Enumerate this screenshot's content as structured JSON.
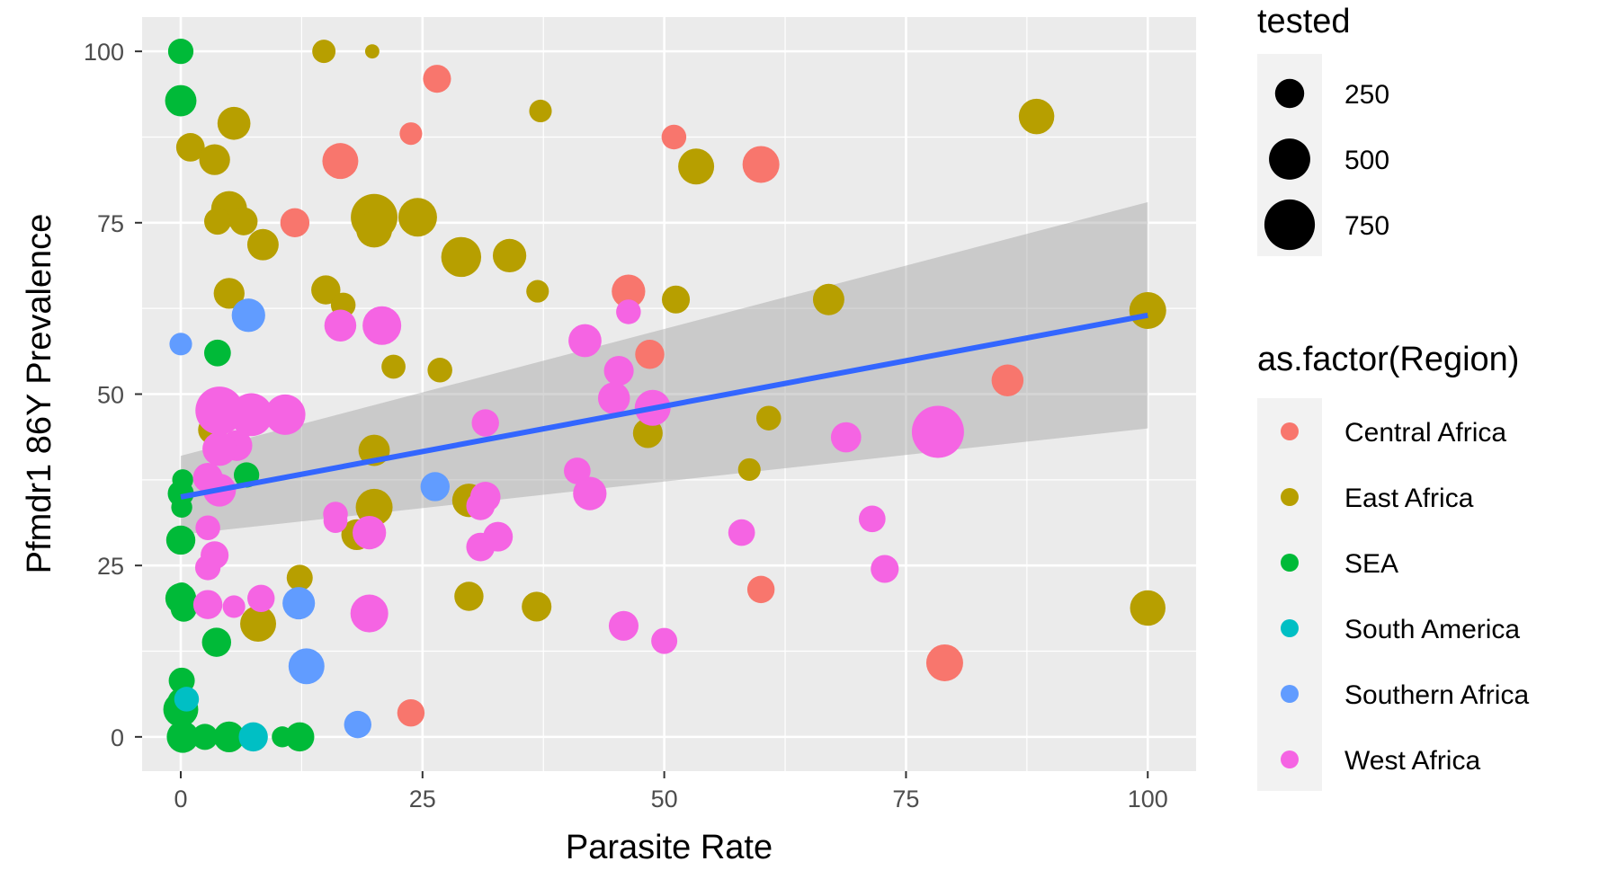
{
  "chart_data": {
    "type": "scatter",
    "title": "",
    "xlabel": "Parasite Rate",
    "ylabel": "Pfmdr1 86Y Prevalence",
    "xlim": [
      -4,
      105
    ],
    "ylim": [
      -5,
      105
    ],
    "x_ticks": [
      "0",
      "25",
      "50",
      "75",
      "100"
    ],
    "y_ticks": [
      "0",
      "25",
      "50",
      "75",
      "100"
    ],
    "grid": true,
    "panel_color": "#ebebeb",
    "size_legend": {
      "title": "tested",
      "entries": [
        {
          "label": "250",
          "value": 250
        },
        {
          "label": "500",
          "value": 500
        },
        {
          "label": "750",
          "value": 750
        }
      ]
    },
    "color_legend": {
      "title": "as.factor(Region)",
      "entries": [
        {
          "label": "Central Africa",
          "color": "#F8766D"
        },
        {
          "label": "East Africa",
          "color": "#B79F00"
        },
        {
          "label": "SEA",
          "color": "#00BA38"
        },
        {
          "label": "South America",
          "color": "#00BFC4"
        },
        {
          "label": "Southern Africa",
          "color": "#619CFF"
        },
        {
          "label": "West Africa",
          "color": "#F564E3"
        }
      ]
    },
    "regression": {
      "method": "lm",
      "color": "#3366FF",
      "x": [
        0,
        100
      ],
      "y": [
        35,
        61.5
      ],
      "ci_lower": [
        29.5,
        45
      ],
      "ci_upper": [
        41,
        78
      ]
    },
    "series": [
      {
        "name": "Central Africa",
        "color": "#F8766D",
        "points": [
          {
            "x": 26.5,
            "y": 96,
            "tested": 230
          },
          {
            "x": 23.8,
            "y": 88,
            "tested": 150
          },
          {
            "x": 16.5,
            "y": 84,
            "tested": 380
          },
          {
            "x": 51,
            "y": 87.5,
            "tested": 180
          },
          {
            "x": 60,
            "y": 83.5,
            "tested": 400
          },
          {
            "x": 11.8,
            "y": 75,
            "tested": 250
          },
          {
            "x": 46.3,
            "y": 65,
            "tested": 330
          },
          {
            "x": 48.5,
            "y": 55.8,
            "tested": 250
          },
          {
            "x": 85.5,
            "y": 52,
            "tested": 300
          },
          {
            "x": 60,
            "y": 21.5,
            "tested": 220
          },
          {
            "x": 79,
            "y": 10.8,
            "tested": 400
          },
          {
            "x": 23.8,
            "y": 3.5,
            "tested": 220
          }
        ]
      },
      {
        "name": "East Africa",
        "color": "#B79F00",
        "points": [
          {
            "x": 14.8,
            "y": 100,
            "tested": 160
          },
          {
            "x": 19.8,
            "y": 100,
            "tested": 60
          },
          {
            "x": 37.2,
            "y": 91.3,
            "tested": 150
          },
          {
            "x": 88.5,
            "y": 90.5,
            "tested": 370
          },
          {
            "x": 5.5,
            "y": 89.5,
            "tested": 320
          },
          {
            "x": 1.0,
            "y": 86,
            "tested": 240
          },
          {
            "x": 3.5,
            "y": 84.2,
            "tested": 280
          },
          {
            "x": 53.3,
            "y": 83.2,
            "tested": 380
          },
          {
            "x": 5.0,
            "y": 77,
            "tested": 380
          },
          {
            "x": 3.8,
            "y": 75.2,
            "tested": 210
          },
          {
            "x": 6.5,
            "y": 75.2,
            "tested": 230
          },
          {
            "x": 20.0,
            "y": 75.8,
            "tested": 640
          },
          {
            "x": 20.0,
            "y": 74,
            "tested": 380
          },
          {
            "x": 24.5,
            "y": 75.8,
            "tested": 440
          },
          {
            "x": 8.5,
            "y": 71.8,
            "tested": 290
          },
          {
            "x": 29.0,
            "y": 70,
            "tested": 470
          },
          {
            "x": 34.0,
            "y": 70.2,
            "tested": 330
          },
          {
            "x": 15.0,
            "y": 65.2,
            "tested": 250
          },
          {
            "x": 5.0,
            "y": 64.7,
            "tested": 280
          },
          {
            "x": 16.8,
            "y": 63,
            "tested": 180
          },
          {
            "x": 36.9,
            "y": 65,
            "tested": 150
          },
          {
            "x": 51.2,
            "y": 63.8,
            "tested": 230
          },
          {
            "x": 67.0,
            "y": 63.8,
            "tested": 290
          },
          {
            "x": 100,
            "y": 62.2,
            "tested": 400
          },
          {
            "x": 22.0,
            "y": 54,
            "tested": 170
          },
          {
            "x": 26.8,
            "y": 53.5,
            "tested": 180
          },
          {
            "x": 60.8,
            "y": 46.5,
            "tested": 180
          },
          {
            "x": 3.3,
            "y": 44.8,
            "tested": 250
          },
          {
            "x": 48.3,
            "y": 44.3,
            "tested": 260
          },
          {
            "x": 20.0,
            "y": 41.8,
            "tested": 290
          },
          {
            "x": 58.8,
            "y": 39,
            "tested": 150
          },
          {
            "x": 29.8,
            "y": 34.5,
            "tested": 330
          },
          {
            "x": 20.0,
            "y": 33.5,
            "tested": 400
          },
          {
            "x": 18.2,
            "y": 29.5,
            "tested": 280
          },
          {
            "x": 12.3,
            "y": 23.2,
            "tested": 200
          },
          {
            "x": 29.8,
            "y": 20.5,
            "tested": 250
          },
          {
            "x": 36.8,
            "y": 19,
            "tested": 260
          },
          {
            "x": 8.0,
            "y": 16.5,
            "tested": 380
          },
          {
            "x": 100,
            "y": 18.8,
            "tested": 370
          }
        ]
      },
      {
        "name": "SEA",
        "color": "#00BA38",
        "points": [
          {
            "x": 0,
            "y": 100,
            "tested": 190
          },
          {
            "x": 0,
            "y": 92.8,
            "tested": 290
          },
          {
            "x": 3.8,
            "y": 56,
            "tested": 210
          },
          {
            "x": 6.8,
            "y": 38.2,
            "tested": 190
          },
          {
            "x": 0.2,
            "y": 37.5,
            "tested": 130
          },
          {
            "x": 0,
            "y": 35.5,
            "tested": 200
          },
          {
            "x": 0.1,
            "y": 33.5,
            "tested": 130
          },
          {
            "x": 0,
            "y": 28.7,
            "tested": 250
          },
          {
            "x": 0.1,
            "y": 21,
            "tested": 130
          },
          {
            "x": 0,
            "y": 20.2,
            "tested": 280
          },
          {
            "x": 0.3,
            "y": 18.7,
            "tested": 200
          },
          {
            "x": 3.7,
            "y": 13.8,
            "tested": 250
          },
          {
            "x": 0.1,
            "y": 8.2,
            "tested": 200
          },
          {
            "x": 0,
            "y": 5.2,
            "tested": 200
          },
          {
            "x": 0,
            "y": 4,
            "tested": 360
          },
          {
            "x": 0.2,
            "y": 0,
            "tested": 300
          },
          {
            "x": 2.5,
            "y": 0,
            "tested": 200
          },
          {
            "x": 5.0,
            "y": 0,
            "tested": 280
          },
          {
            "x": 10.5,
            "y": 0,
            "tested": 130
          },
          {
            "x": 12.3,
            "y": 0,
            "tested": 250
          }
        ]
      },
      {
        "name": "South America",
        "color": "#00BFC4",
        "points": [
          {
            "x": 0.6,
            "y": 5.5,
            "tested": 180
          },
          {
            "x": 7.5,
            "y": 0,
            "tested": 250
          }
        ]
      },
      {
        "name": "Southern Africa",
        "color": "#619CFF",
        "points": [
          {
            "x": 0,
            "y": 57.3,
            "tested": 150
          },
          {
            "x": 7.0,
            "y": 61.5,
            "tested": 330
          },
          {
            "x": 26.3,
            "y": 36.5,
            "tested": 250
          },
          {
            "x": 12.2,
            "y": 19.5,
            "tested": 310
          },
          {
            "x": 13.0,
            "y": 10.3,
            "tested": 380
          },
          {
            "x": 18.3,
            "y": 1.8,
            "tested": 220
          }
        ]
      },
      {
        "name": "West Africa",
        "color": "#F564E3",
        "points": [
          {
            "x": 46.3,
            "y": 62,
            "tested": 180
          },
          {
            "x": 16.5,
            "y": 60,
            "tested": 300
          },
          {
            "x": 20.8,
            "y": 60,
            "tested": 440
          },
          {
            "x": 41.8,
            "y": 57.8,
            "tested": 320
          },
          {
            "x": 45.3,
            "y": 53.4,
            "tested": 260
          },
          {
            "x": 44.8,
            "y": 49.4,
            "tested": 300
          },
          {
            "x": 48.8,
            "y": 48,
            "tested": 380
          },
          {
            "x": 4.0,
            "y": 47.6,
            "tested": 680
          },
          {
            "x": 7.3,
            "y": 47,
            "tested": 540
          },
          {
            "x": 10.8,
            "y": 47,
            "tested": 480
          },
          {
            "x": 78.3,
            "y": 44.5,
            "tested": 800
          },
          {
            "x": 31.5,
            "y": 45.8,
            "tested": 220
          },
          {
            "x": 68.8,
            "y": 43.7,
            "tested": 270
          },
          {
            "x": 5.8,
            "y": 42.5,
            "tested": 280
          },
          {
            "x": 4.0,
            "y": 42,
            "tested": 340
          },
          {
            "x": 41.0,
            "y": 38.8,
            "tested": 210
          },
          {
            "x": 2.8,
            "y": 37.8,
            "tested": 260
          },
          {
            "x": 4.0,
            "y": 36,
            "tested": 320
          },
          {
            "x": 42.3,
            "y": 35.5,
            "tested": 330
          },
          {
            "x": 31.5,
            "y": 35,
            "tested": 270
          },
          {
            "x": 31.0,
            "y": 33.7,
            "tested": 240
          },
          {
            "x": 16.0,
            "y": 32.5,
            "tested": 180
          },
          {
            "x": 16.0,
            "y": 31.5,
            "tested": 170
          },
          {
            "x": 71.5,
            "y": 31.8,
            "tested": 210
          },
          {
            "x": 2.8,
            "y": 30.5,
            "tested": 180
          },
          {
            "x": 19.5,
            "y": 29.8,
            "tested": 330
          },
          {
            "x": 58.0,
            "y": 29.8,
            "tested": 210
          },
          {
            "x": 32.8,
            "y": 29.2,
            "tested": 260
          },
          {
            "x": 31.0,
            "y": 27.7,
            "tested": 240
          },
          {
            "x": 3.5,
            "y": 26.5,
            "tested": 230
          },
          {
            "x": 2.8,
            "y": 24.7,
            "tested": 190
          },
          {
            "x": 72.8,
            "y": 24.5,
            "tested": 230
          },
          {
            "x": 8.3,
            "y": 20.2,
            "tested": 220
          },
          {
            "x": 2.8,
            "y": 19.3,
            "tested": 250
          },
          {
            "x": 5.5,
            "y": 19,
            "tested": 150
          },
          {
            "x": 19.5,
            "y": 18,
            "tested": 420
          },
          {
            "x": 45.8,
            "y": 16.2,
            "tested": 260
          },
          {
            "x": 50.0,
            "y": 14,
            "tested": 200
          }
        ]
      }
    ]
  }
}
